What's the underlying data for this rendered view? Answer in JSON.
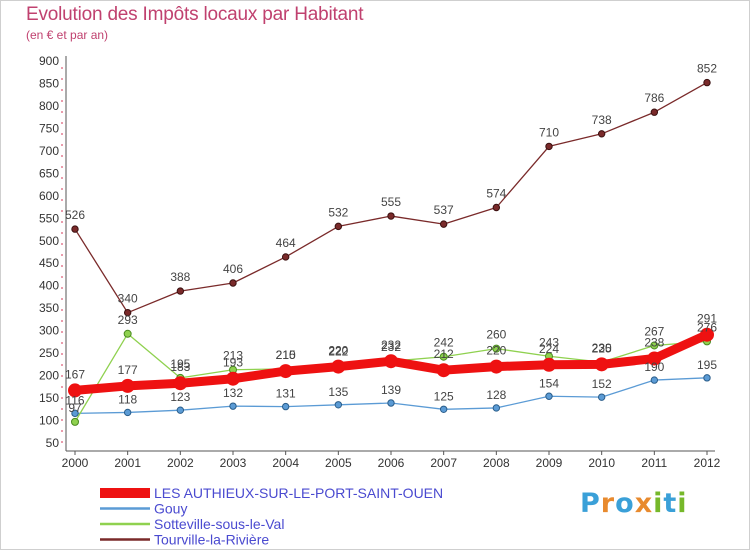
{
  "title": "Evolution des Impôts locaux par Habitant",
  "subtitle": "(en € et par an)",
  "logo": {
    "text": "Proxiti",
    "colors": [
      "#3aa0d8",
      "#e88a2e",
      "#76b82a"
    ]
  },
  "chart_data": {
    "type": "line",
    "title": "Evolution des Impôts locaux par Habitant",
    "subtitle": "(en € et par an)",
    "xlabel": "",
    "ylabel": "",
    "x": [
      2000,
      2001,
      2002,
      2003,
      2004,
      2005,
      2006,
      2007,
      2008,
      2009,
      2010,
      2011,
      2012
    ],
    "ylim": [
      50,
      900
    ],
    "yticks": [
      50,
      100,
      150,
      200,
      250,
      300,
      350,
      400,
      450,
      500,
      550,
      600,
      650,
      700,
      750,
      800,
      850,
      900
    ],
    "grid": false,
    "legend_position": "bottom-left",
    "series": [
      {
        "name": "Tourville-la-Rivière",
        "color": "#7a2a2a",
        "values": [
          526,
          340,
          388,
          406,
          464,
          532,
          555,
          537,
          574,
          710,
          738,
          786,
          852
        ]
      },
      {
        "name": "Gouy",
        "color": "#5b9bd5",
        "values": [
          116,
          118,
          123,
          132,
          131,
          135,
          139,
          125,
          128,
          154,
          152,
          190,
          195
        ]
      },
      {
        "name": "Sotteville-sous-le-Val",
        "color": "#8fd14f",
        "values": [
          97,
          293,
          195,
          213,
          215,
          222,
          232,
          242,
          260,
          243,
          230,
          267,
          276
        ]
      },
      {
        "name": "LES AUTHIEUX-SUR-LE-PORT-SAINT-OUEN",
        "color": "#ee1111",
        "values": [
          167,
          177,
          183,
          193,
          210,
          220,
          232,
          212,
          220,
          224,
          225,
          238,
          291
        ]
      }
    ],
    "legend_order": [
      "LES AUTHIEUX-SUR-LE-PORT-SAINT-OUEN",
      "Gouy",
      "Sotteville-sous-le-Val",
      "Tourville-la-Rivière"
    ]
  }
}
